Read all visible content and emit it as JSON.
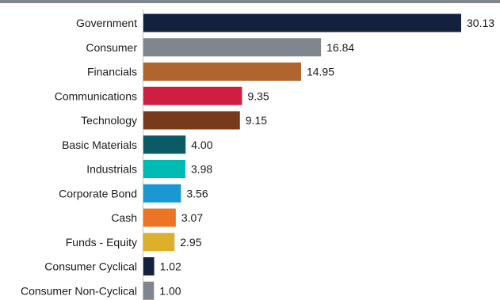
{
  "chart_data": {
    "type": "bar",
    "orientation": "horizontal",
    "title": "",
    "xlabel": "",
    "ylabel": "",
    "grid": false,
    "legend": "none",
    "xlim": [
      0,
      30.13
    ],
    "categories": [
      "Government",
      "Consumer",
      "Financials",
      "Communications",
      "Technology",
      "Basic Materials",
      "Industrials",
      "Corporate Bond",
      "Cash",
      "Funds - Equity",
      "Consumer Cyclical",
      "Consumer Non-Cyclical"
    ],
    "values": [
      30.13,
      16.84,
      14.95,
      9.35,
      9.15,
      4.0,
      3.98,
      3.56,
      3.07,
      2.95,
      1.02,
      1.0
    ],
    "value_labels": [
      "30.13",
      "16.84",
      "14.95",
      "9.35",
      "9.15",
      "4.00",
      "3.98",
      "3.56",
      "3.07",
      "2.95",
      "1.02",
      "1.00"
    ],
    "colors": [
      "#13213f",
      "#7f868d",
      "#b0642e",
      "#d01e42",
      "#773a1b",
      "#0b5b66",
      "#00bbb4",
      "#1a98d4",
      "#ec7424",
      "#ddb02b",
      "#13213f",
      "#7f868d"
    ],
    "top_border_color": "#7f868d"
  }
}
